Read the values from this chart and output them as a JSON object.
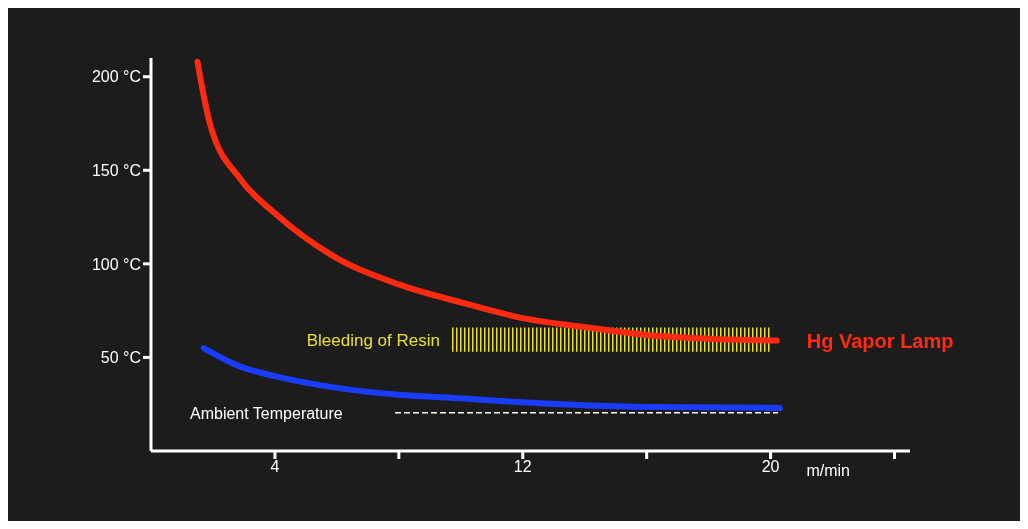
{
  "chart_data": {
    "type": "line",
    "xlabel": "m/min",
    "xlim": [
      0,
      24.5
    ],
    "ylim": [
      0,
      210
    ],
    "xticks": [
      4,
      {
        "value": 8,
        "label": null
      },
      12,
      {
        "value": 16,
        "label": null
      },
      20,
      {
        "value": 24,
        "label": null
      }
    ],
    "yticks": [
      {
        "value": 50,
        "label": "50 °C"
      },
      {
        "value": 100,
        "label": "100 °C"
      },
      {
        "value": 150,
        "label": "150 °C"
      },
      {
        "value": 200,
        "label": "200 °C"
      }
    ],
    "marker": "none",
    "line_style": "solid",
    "series": [
      {
        "name": "Hg Vapor Lamp",
        "color": "#ff2a10",
        "x": [
          1.5,
          1.9,
          2.9,
          4,
          5.9,
          8,
          10.1,
          12,
          14.1,
          16,
          18,
          20.2
        ],
        "values": [
          208,
          175,
          145,
          127,
          104,
          89,
          79,
          71,
          66,
          62,
          60,
          59
        ]
      },
      {
        "color": "#1a3cff",
        "x": [
          1.7,
          2.9,
          4,
          5.9,
          8,
          10.1,
          12,
          16,
          20.3
        ],
        "values": [
          55,
          45,
          40,
          34,
          30,
          28,
          26,
          23.5,
          23
        ]
      }
    ],
    "ref_lines": [
      {
        "axis": "y",
        "value": 20.4,
        "label": "Ambient Temperature",
        "color": "#ffffff",
        "line_style": "dashed"
      }
    ],
    "bands": [
      {
        "axis": "y",
        "from": 53,
        "to": 66,
        "label": "Bleeding of Resin",
        "color": "#e8e030"
      }
    ]
  }
}
